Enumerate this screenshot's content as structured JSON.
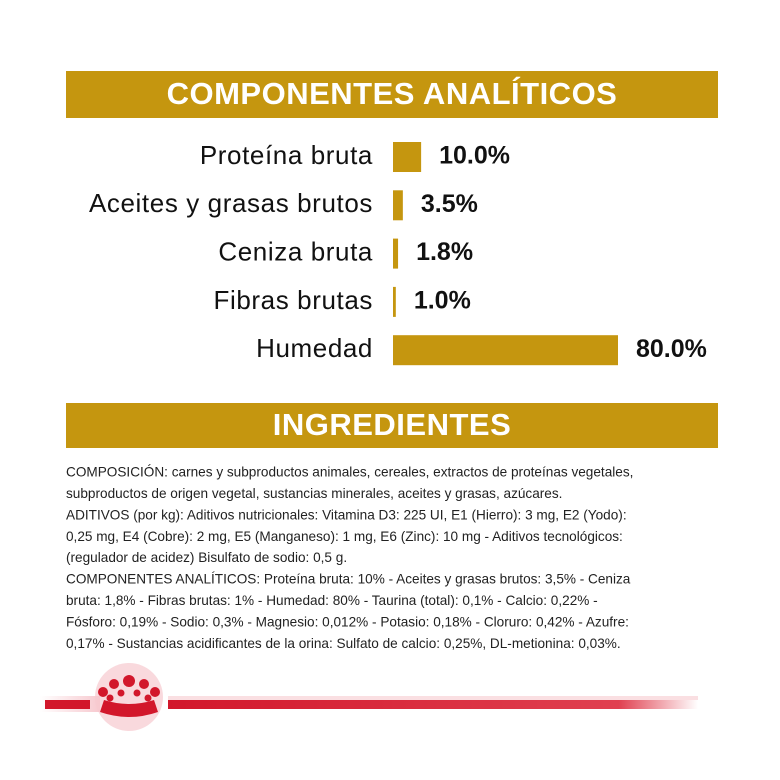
{
  "chart_data": {
    "type": "bar",
    "orientation": "horizontal",
    "title": "COMPONENTES ANALÍTICOS",
    "categories": [
      "Proteína bruta",
      "Aceites y grasas brutos",
      "Ceniza bruta",
      "Fibras brutas",
      "Humedad"
    ],
    "values": [
      10.0,
      3.5,
      1.8,
      1.0,
      80.0
    ],
    "value_labels": [
      "10.0%",
      "3.5%",
      "1.8%",
      "1.0%",
      "80.0%"
    ],
    "color": "#c5960f"
  },
  "ingredients": {
    "title": "INGREDIENTES",
    "lines": [
      "COMPOSICIÓN: carnes y subproductos animales, cereales, extractos de proteínas vegetales,",
      "subproductos de origen vegetal, sustancias minerales, aceites y grasas, azúcares.",
      "ADITIVOS (por kg): Aditivos nutricionales: Vitamina D3: 225 UI, E1 (Hierro): 3 mg, E2 (Yodo):",
      "0,25 mg, E4 (Cobre): 2 mg, E5 (Manganeso): 1 mg, E6 (Zinc): 10 mg - Aditivos tecnológicos:",
      "(regulador de acidez) Bisulfato de sodio: 0,5 g.",
      "COMPONENTES ANALÍTICOS: Proteína bruta: 10% - Aceites y grasas brutos: 3,5% - Ceniza",
      "bruta: 1,8% - Fibras brutas: 1% - Humedad: 80% - Taurina (total): 0,1% - Calcio: 0,22% -",
      "Fósforo: 0,19% - Sodio: 0,3% - Magnesio: 0,012% - Potasio: 0,18% - Cloruro: 0,42% - Azufre:",
      "0,17% - Sustancias acidificantes de la orina: Sulfato de calcio: 0,25%, DL-metionina: 0,03%."
    ]
  }
}
